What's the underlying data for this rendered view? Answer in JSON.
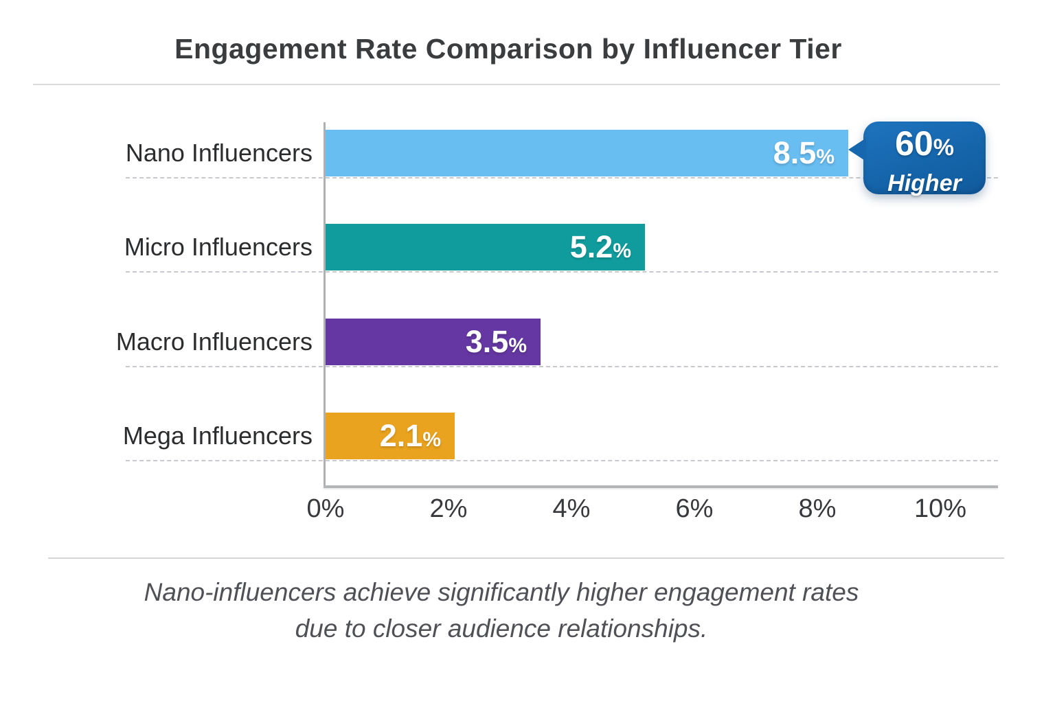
{
  "header": {
    "title": "Engagement Rate Comparison by Influencer Tier"
  },
  "chart_data": {
    "type": "bar",
    "orientation": "horizontal",
    "title": "Engagement Rate Comparison by Influencer Tier",
    "xlabel": "",
    "ylabel": "",
    "categories": [
      "Nano Influencers",
      "Micro Influencers",
      "Macro Influencers",
      "Mega Influencers"
    ],
    "values": [
      8.5,
      5.2,
      3.5,
      2.1
    ],
    "value_labels": [
      "8.5%",
      "5.2%",
      "3.5%",
      "2.1%"
    ],
    "bar_colors": [
      "#68bdf1",
      "#109c9d",
      "#6537a2",
      "#e9a31e"
    ],
    "xlim": [
      0,
      10
    ],
    "x_tick_values": [
      0,
      2,
      4,
      6,
      8,
      10
    ],
    "x_tick_labels": [
      "0%",
      "2%",
      "4%",
      "6%",
      "8%",
      "10%"
    ],
    "grid": "dashed horizontal line under each bar row",
    "legend": "none",
    "annotation": {
      "target_category": "Nano Influencers",
      "value": "60",
      "suffix": "%",
      "label": "Higher",
      "badge_color": "#1565ab",
      "text_color": "#ffffff"
    }
  },
  "footer": {
    "caption_line1": "Nano-influencers achieve significantly higher engagement rates",
    "caption_line2": "due to closer audience relationships."
  }
}
